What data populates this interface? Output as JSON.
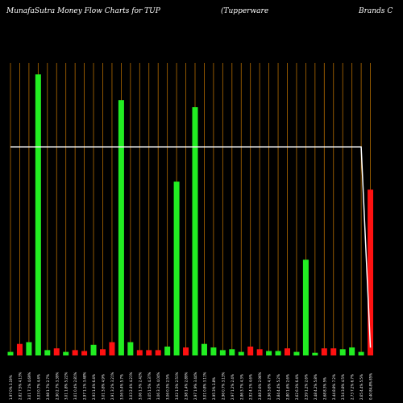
{
  "header": {
    "left": "MunafaSutra  Money Flow  Charts for TUP",
    "middle": "(Tupperware",
    "right": "Brands C"
  },
  "colors": {
    "background": "#000000",
    "up": "#22ee22",
    "down": "#ff1111",
    "grid": "#b36b00",
    "price_line": "#ffffff"
  },
  "chart_data": {
    "type": "bar",
    "title": "MunafaSutra  Money Flow  Charts for TUP (Tupperware Brands C",
    "grid": true,
    "categories": [
      "1.97 0% 3.19%",
      "2.82 7.5% 4.13%",
      "3.01 7.1% 4.69%",
      "3.03 0.7% 4.4%",
      "2.98 1.7% 2.7%",
      "2.90 2.7% 3.39%",
      "3.01 1.8% 5.22%",
      "3.01 0.4% 2.81%",
      "2.97 1.1% 3.48%",
      "2.93 1.4% 6.4%",
      "3.01 3.8% 4.9%",
      "2.91 3.2% 3.21%",
      "3.06 5.4% 5.7%",
      "3.03 2.4% 4.21%",
      "3.06 1.3% 2.42%",
      "3.05 1.5% 4.37%",
      "3.06 3.1% 4.04%",
      "3.06 0.3% 2.5%",
      "3.02 1.5% 2.51%",
      "2.98 1.4% 2.89%",
      "2.97 1.9% 3.44%",
      "3.01 0.8% 3.11%",
      "2.95 3% 3.8%",
      "2.96 0.7% 3.13%",
      "2.97 1.2% 2.4%",
      "2.86 3.7% 4.3%",
      "2.92 4.1% 4.6%",
      "2.88 2.6% 2.96%",
      "2.96 3.6% 4.7%",
      "2.84 4.4% 5.2%",
      "2.80 1.6% 2.6%",
      "2.62 6.3% 6.4%",
      "2.59 1.2% 2.6%",
      "2.48 4.2% 5.8%",
      "2.68 8.3% 5%",
      "2.44 8.8% 7.2%",
      "2.54 3.8% 4.5%",
      "2.73 7.2% 6.7%",
      "2.65 4.4% 5.5%",
      "0.40 84.8% 85%"
    ],
    "values": [
      4,
      13,
      15,
      317,
      6,
      8,
      4,
      6,
      5,
      12,
      7,
      15,
      288,
      15,
      6,
      6,
      6,
      10,
      196,
      9,
      280,
      13,
      9,
      6,
      7,
      4,
      10,
      7,
      5,
      5,
      8,
      4,
      108,
      3,
      8,
      8,
      7,
      9,
      4,
      187
    ],
    "directions": [
      "up",
      "down",
      "up",
      "up",
      "up",
      "down",
      "up",
      "down",
      "down",
      "up",
      "down",
      "down",
      "up",
      "up",
      "down",
      "down",
      "down",
      "up",
      "up",
      "down",
      "up",
      "up",
      "up",
      "up",
      "up",
      "up",
      "down",
      "down",
      "up",
      "up",
      "down",
      "up",
      "up",
      "up",
      "down",
      "down",
      "up",
      "up",
      "up",
      "down"
    ],
    "ylim": [
      0,
      330
    ],
    "price_line": [
      2.98,
      2.98,
      2.98,
      2.98,
      2.98,
      2.98,
      2.98,
      2.98,
      2.98,
      2.98,
      2.98,
      2.98,
      2.98,
      2.98,
      2.98,
      2.98,
      2.98,
      2.98,
      2.98,
      2.98,
      2.98,
      2.98,
      2.98,
      2.98,
      2.98,
      2.98,
      2.98,
      2.98,
      2.98,
      2.98,
      2.98,
      2.98,
      2.98,
      2.98,
      2.98,
      2.98,
      2.98,
      2.98,
      2.98,
      0.4
    ],
    "price_ylim": [
      0.3,
      2.9
    ]
  }
}
